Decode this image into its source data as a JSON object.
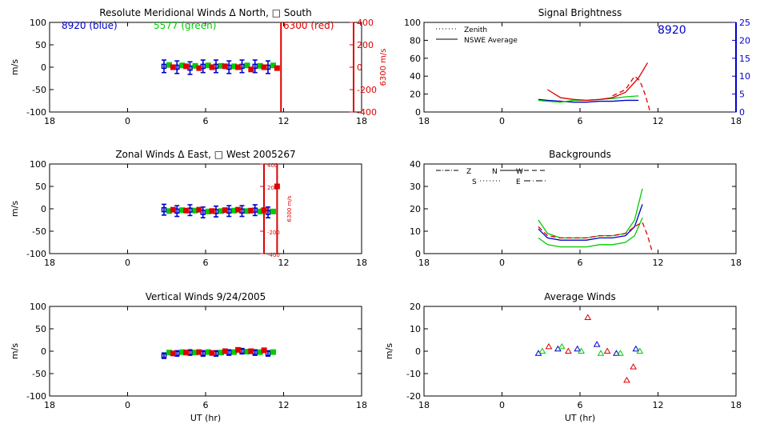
{
  "colors": {
    "blue": "#0000cc",
    "green": "#00cc00",
    "red": "#dd0000",
    "black": "#000000"
  },
  "chart_data": [
    {
      "id": "meridional",
      "type": "scatter",
      "title": "Resolute Meridional Winds Δ North, □ South",
      "xlabel": "",
      "ylabel": "m/s",
      "y2label": "6300 m/s",
      "xlim": [
        18,
        42
      ],
      "ylim": [
        -100,
        100
      ],
      "y2lim": [
        -400,
        400
      ],
      "xticks": [
        "18",
        "0",
        "6",
        "12",
        "18"
      ],
      "yticks": [
        "100",
        "50",
        "0",
        "-50",
        "-100"
      ],
      "y2ticks": [
        "400",
        "200",
        "0",
        "-200",
        "-400"
      ],
      "annotations": [
        "8920 (blue)",
        "5577 (green)",
        "6300 (red)"
      ],
      "series": [
        {
          "name": "8920 (blue)",
          "marker": "errorbar",
          "color": "blue",
          "x": [
            26.8,
            27.8,
            28.8,
            29.8,
            30.8,
            31.8,
            32.8,
            33.8,
            34.8
          ],
          "y": [
            2,
            0,
            -2,
            2,
            2,
            0,
            2,
            2,
            0
          ],
          "err": [
            14,
            14,
            14,
            14,
            14,
            14,
            14,
            14,
            14
          ]
        },
        {
          "name": "5577 (green)",
          "marker": "square",
          "color": "green",
          "x": [
            27.2,
            28.2,
            29.2,
            30.2,
            31.2,
            32.2,
            33.2,
            34.2,
            35.2
          ],
          "y": [
            5,
            4,
            3,
            4,
            3,
            2,
            4,
            3,
            4
          ]
        },
        {
          "name": "6300 (red)",
          "marker": "square",
          "color": "red",
          "x": [
            27.5,
            28.5,
            29.5,
            30.5,
            31.5,
            32.5,
            33.5,
            34.5,
            35.5
          ],
          "y": [
            0,
            2,
            -2,
            0,
            2,
            0,
            -5,
            0,
            -2
          ]
        }
      ],
      "red_vline_x": 35.8
    },
    {
      "id": "brightness",
      "type": "line",
      "title": "Signal Brightness",
      "xlabel": "",
      "ylabel": "",
      "xlim": [
        18,
        42
      ],
      "ylim": [
        0,
        100
      ],
      "y2lim": [
        0,
        25
      ],
      "xticks": [
        "18",
        "0",
        "6",
        "12",
        "18"
      ],
      "yticks": [
        "100",
        "80",
        "60",
        "40",
        "20",
        "0"
      ],
      "y2ticks": [
        "25",
        "20",
        "15",
        "10",
        "5",
        "0"
      ],
      "annotations": [
        "8920"
      ],
      "legend": [
        "Zenith",
        "NSWE Average"
      ],
      "series": [
        {
          "name": "8920 NSWE Average",
          "style": "solid",
          "color": "blue",
          "x": [
            26.8,
            27.5,
            28.5,
            29.5,
            30.5,
            31.5,
            32.5,
            33.5,
            34.5
          ],
          "y": [
            14,
            13,
            12,
            11,
            11,
            12,
            12,
            13,
            13
          ]
        },
        {
          "name": "5577 NSWE Average",
          "style": "solid",
          "color": "green",
          "x": [
            26.8,
            27.5,
            28.5,
            29.5,
            30.5,
            31.5,
            32.5,
            33.5,
            34.5
          ],
          "y": [
            13,
            12,
            11,
            13,
            13,
            14,
            15,
            17,
            18
          ]
        },
        {
          "name": "6300 NSWE Average",
          "style": "solid",
          "color": "red",
          "x": [
            27.5,
            28.5,
            29.5,
            30.5,
            31.5,
            32.5,
            33.5,
            34.5,
            35.2
          ],
          "y": [
            25,
            16,
            14,
            13,
            14,
            16,
            22,
            38,
            55
          ]
        },
        {
          "name": "6300 Zenith",
          "style": "dashed",
          "color": "red",
          "x": [
            32.5,
            33.5,
            34.2,
            34.6,
            35.0,
            35.4
          ],
          "y": [
            18,
            25,
            40,
            35,
            20,
            0
          ]
        }
      ]
    },
    {
      "id": "zonal",
      "type": "scatter",
      "title": "Zonal Winds Δ East, □ West 2005267",
      "xlabel": "",
      "ylabel": "m/s",
      "y2label": "6300 m/s",
      "xlim": [
        18,
        42
      ],
      "ylim": [
        -100,
        100
      ],
      "y2lim": [
        -400,
        400
      ],
      "xticks": [
        "18",
        "0",
        "6",
        "12",
        "18"
      ],
      "yticks": [
        "100",
        "50",
        "0",
        "-50",
        "-100"
      ],
      "y2ticks": [
        "400",
        "200",
        "0",
        "-200",
        "-400"
      ],
      "series": [
        {
          "name": "8920 (blue)",
          "marker": "errorbar",
          "color": "blue",
          "x": [
            26.8,
            27.8,
            28.8,
            29.8,
            30.8,
            31.8,
            32.8,
            33.8,
            34.8
          ],
          "y": [
            -2,
            -5,
            -3,
            -8,
            -6,
            -5,
            -5,
            -3,
            -8
          ],
          "err": [
            12,
            12,
            12,
            12,
            12,
            12,
            12,
            12,
            12
          ]
        },
        {
          "name": "5577 (green)",
          "marker": "square",
          "color": "green",
          "x": [
            27.2,
            28.2,
            29.2,
            30.2,
            31.2,
            32.2,
            33.2,
            34.2,
            35.2
          ],
          "y": [
            -5,
            -3,
            -4,
            -6,
            -5,
            -4,
            -5,
            -6,
            -6
          ]
        },
        {
          "name": "6300 (red)",
          "marker": "square",
          "color": "red",
          "x": [
            27.5,
            28.5,
            29.5,
            30.5,
            31.5,
            32.5,
            33.5,
            34.5,
            35.5
          ],
          "y": [
            -2,
            -4,
            -2,
            -5,
            -3,
            -2,
            -4,
            -3,
            50
          ]
        }
      ],
      "red_vline_x": 35.5
    },
    {
      "id": "backgrounds",
      "type": "line",
      "title": "Backgrounds",
      "xlabel": "",
      "ylabel": "",
      "xlim": [
        18,
        42
      ],
      "ylim": [
        0,
        40
      ],
      "xticks": [
        "18",
        "0",
        "6",
        "12",
        "18"
      ],
      "yticks": [
        "40",
        "30",
        "20",
        "10",
        "0"
      ],
      "legend": [
        "Z",
        "N",
        "W",
        "S",
        "E"
      ],
      "series": [
        {
          "name": "green upper",
          "style": "solid",
          "color": "green",
          "x": [
            26.8,
            27.5,
            28.5,
            29.5,
            30.5,
            31.5,
            32.5,
            33.5,
            34.2,
            34.8
          ],
          "y": [
            15,
            9,
            7,
            7,
            7,
            8,
            8,
            9,
            15,
            29
          ]
        },
        {
          "name": "green lower",
          "style": "solid",
          "color": "green",
          "x": [
            26.8,
            27.5,
            28.5,
            29.5,
            30.5,
            31.5,
            32.5,
            33.5,
            34.2,
            34.8
          ],
          "y": [
            7,
            4,
            3,
            3,
            3,
            4,
            4,
            5,
            8,
            16
          ]
        },
        {
          "name": "blue",
          "style": "solid",
          "color": "blue",
          "x": [
            26.8,
            27.5,
            28.5,
            29.5,
            30.5,
            31.5,
            32.5,
            33.5,
            34.2,
            34.8
          ],
          "y": [
            11,
            7,
            6,
            6,
            6,
            7,
            7,
            8,
            12,
            22
          ]
        },
        {
          "name": "red",
          "style": "dashed",
          "color": "red",
          "x": [
            26.8,
            27.5,
            28.5,
            29.5,
            30.5,
            31.5,
            32.5,
            33.5,
            34.2,
            34.8,
            35.2,
            35.6
          ],
          "y": [
            12,
            8,
            7,
            7,
            7,
            8,
            8,
            9,
            12,
            14,
            8,
            0
          ]
        }
      ]
    },
    {
      "id": "vertical",
      "type": "scatter",
      "title": "Vertical Winds 9/24/2005",
      "xlabel": "UT (hr)",
      "ylabel": "m/s",
      "xlim": [
        18,
        42
      ],
      "ylim": [
        -100,
        100
      ],
      "xticks": [
        "18",
        "0",
        "6",
        "12",
        "18"
      ],
      "yticks": [
        "100",
        "50",
        "0",
        "-50",
        "-100"
      ],
      "series": [
        {
          "name": "8920 (blue)",
          "marker": "errorbar",
          "color": "blue",
          "x": [
            26.8,
            27.8,
            28.8,
            29.8,
            30.8,
            31.8,
            32.8,
            33.8,
            34.8
          ],
          "y": [
            -10,
            -5,
            -3,
            -5,
            -5,
            -3,
            0,
            -3,
            -5
          ],
          "err": [
            6,
            6,
            6,
            6,
            6,
            6,
            6,
            6,
            6
          ]
        },
        {
          "name": "5577 (green)",
          "marker": "square",
          "color": "green",
          "x": [
            27.2,
            28.2,
            29.2,
            30.2,
            31.2,
            32.2,
            33.2,
            34.2,
            35.2
          ],
          "y": [
            -3,
            -2,
            -3,
            -2,
            -3,
            -2,
            -1,
            -2,
            -2
          ]
        },
        {
          "name": "6300 (red)",
          "marker": "square",
          "color": "red",
          "x": [
            27.5,
            28.5,
            29.5,
            30.5,
            31.5,
            32.5,
            33.5,
            34.5
          ],
          "y": [
            -5,
            -3,
            -2,
            -4,
            0,
            3,
            0,
            2
          ]
        }
      ]
    },
    {
      "id": "average",
      "type": "scatter",
      "title": "Average Winds",
      "xlabel": "UT (hr)",
      "ylabel": "m/s",
      "xlim": [
        18,
        42
      ],
      "ylim": [
        -20,
        20
      ],
      "xticks": [
        "18",
        "0",
        "6",
        "12",
        "18"
      ],
      "yticks": [
        "20",
        "10",
        "0",
        "-10",
        "-20"
      ],
      "series": [
        {
          "name": "blue",
          "marker": "triangle",
          "color": "blue",
          "x": [
            26.8,
            28.3,
            29.8,
            31.3,
            32.8,
            34.3
          ],
          "y": [
            -1,
            1,
            1,
            3,
            -1,
            1
          ]
        },
        {
          "name": "green",
          "marker": "triangle",
          "color": "green",
          "x": [
            27.1,
            28.6,
            30.1,
            31.6,
            33.1,
            34.6
          ],
          "y": [
            0,
            2,
            0,
            -1,
            -1,
            0
          ]
        },
        {
          "name": "red",
          "marker": "triangle",
          "color": "red",
          "x": [
            27.6,
            29.1,
            30.6,
            32.1,
            33.6,
            34.1
          ],
          "y": [
            2,
            0,
            15,
            0,
            -13,
            -7
          ]
        }
      ]
    }
  ]
}
